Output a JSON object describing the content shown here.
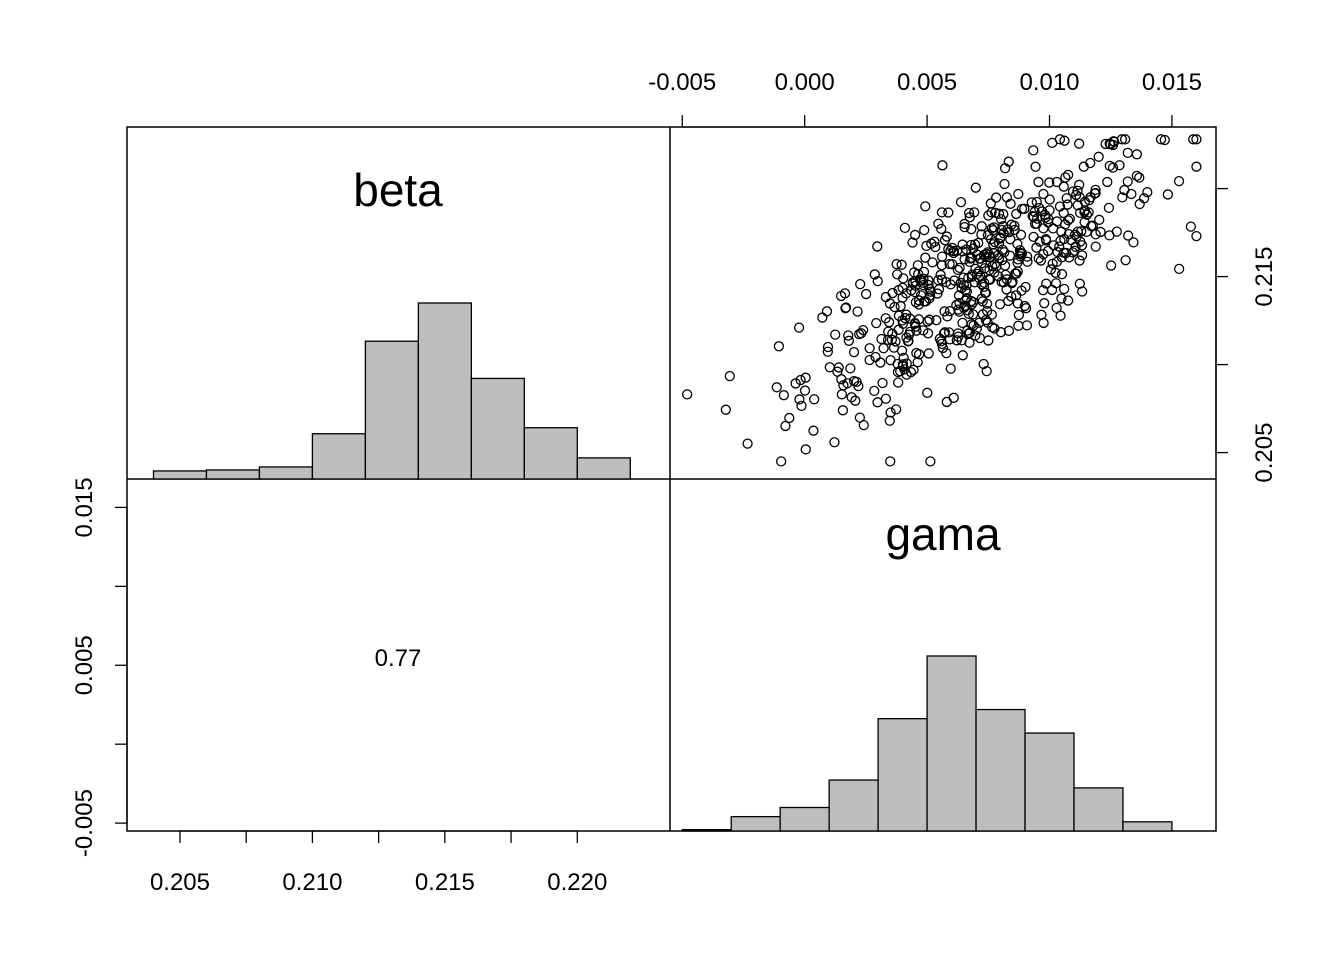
{
  "chart_data": [
    {
      "panel": "beta-histogram",
      "type": "bar",
      "title": "beta",
      "bin_edges": [
        0.204,
        0.206,
        0.208,
        0.21,
        0.212,
        0.214,
        0.216,
        0.218,
        0.22,
        0.222
      ],
      "values": [
        8,
        9,
        12,
        45,
        137,
        175,
        100,
        51,
        21
      ],
      "x_ticks": [
        "0.205",
        "0.210",
        "0.215",
        "0.220"
      ],
      "xlim": [
        0.203,
        0.2235
      ]
    },
    {
      "panel": "gama-vs-beta-scatter",
      "type": "scatter",
      "x_variable": "gama",
      "y_variable": "beta",
      "xlim": [
        -0.0055,
        0.0168
      ],
      "ylim": [
        0.2035,
        0.2235
      ],
      "x_ticks": [
        "-0.005",
        "0.000",
        "0.005",
        "0.010",
        "0.015"
      ],
      "y_ticks": [
        "0.205",
        "0.215"
      ],
      "trend": {
        "slope": 0.78,
        "intercept": 0.2094,
        "noise_sd": 0.0023
      },
      "point_count": 560
    },
    {
      "panel": "correlation",
      "type": "table",
      "value": "0.77"
    },
    {
      "panel": "gama-histogram",
      "type": "bar",
      "title": "gama",
      "bin_edges": [
        -0.005,
        -0.003,
        -0.001,
        0.001,
        0.003,
        0.005,
        0.007,
        0.009,
        0.011,
        0.013,
        0.015,
        0.017
      ],
      "values": [
        1,
        11,
        18,
        39,
        86,
        134,
        93,
        75,
        33,
        7,
        0
      ]
    },
    {
      "panel": "left-axis",
      "type": "table",
      "y_ticks": [
        "-0.005",
        "0.005",
        "0.015"
      ]
    }
  ]
}
